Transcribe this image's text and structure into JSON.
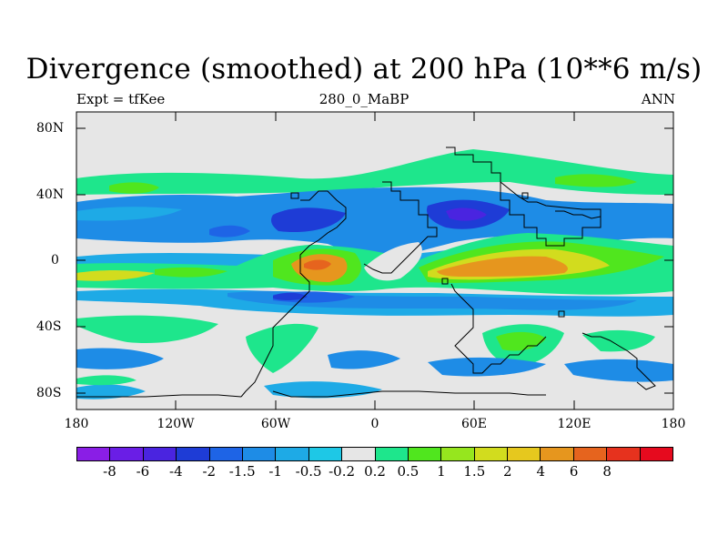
{
  "title": "Divergence (smoothed) at 200 hPa (10**6 m/s)",
  "left_label": "Expt = tfKee",
  "center_label": "280_0_MaBP",
  "right_label": "ANN",
  "y_ticks": [
    "80N",
    "40N",
    "0",
    "40S",
    "80S"
  ],
  "x_ticks": [
    "180",
    "120W",
    "60W",
    "0",
    "60E",
    "120E",
    "180"
  ],
  "colorbar": {
    "colors": [
      "#8a1ee6",
      "#6a1ee6",
      "#4a24e0",
      "#1e3cd6",
      "#1e64e6",
      "#1e8ce6",
      "#1eaae6",
      "#1ec8e6",
      "#e6e6e6",
      "#1ee68c",
      "#50e61e",
      "#96e61e",
      "#d2dc1e",
      "#e6c81e",
      "#e6961e",
      "#e6641e",
      "#e6321e",
      "#e60a1e"
    ],
    "labels": [
      "-8",
      "-6",
      "-4",
      "-2",
      "-1.5",
      "-1",
      "-0.5",
      "-0.2",
      "0.2",
      "0.5",
      "1",
      "1.5",
      "2",
      "4",
      "6",
      "8"
    ]
  },
  "chart_data": {
    "type": "heatmap",
    "title": "Divergence (smoothed) at 200 hPa (10**6 m/s)",
    "xlabel": "",
    "ylabel": "",
    "xlim": [
      -180,
      180
    ],
    "ylim": [
      -90,
      90
    ],
    "levels": [
      -8,
      -6,
      -4,
      -2,
      -1.5,
      -1,
      -0.5,
      -0.2,
      0.2,
      0.5,
      1,
      1.5,
      2,
      4,
      6,
      8
    ],
    "features": [
      {
        "region": "tropical band 0-30E, ~5S",
        "value": 3
      },
      {
        "region": "tropical band 30E-120E, ~5S",
        "value": 2.5
      },
      {
        "region": "subtropics 20N-40N, 40E-80E",
        "value": -3
      },
      {
        "region": "subtropics 20N-30N, 120W-40W",
        "value": -2.5
      },
      {
        "region": "southern tropics 20S-35S",
        "value": -1
      },
      {
        "region": "40N band 180-120W",
        "value": 0.5
      },
      {
        "region": "50S-80S, 30E-90E",
        "value": 0.7
      }
    ]
  }
}
